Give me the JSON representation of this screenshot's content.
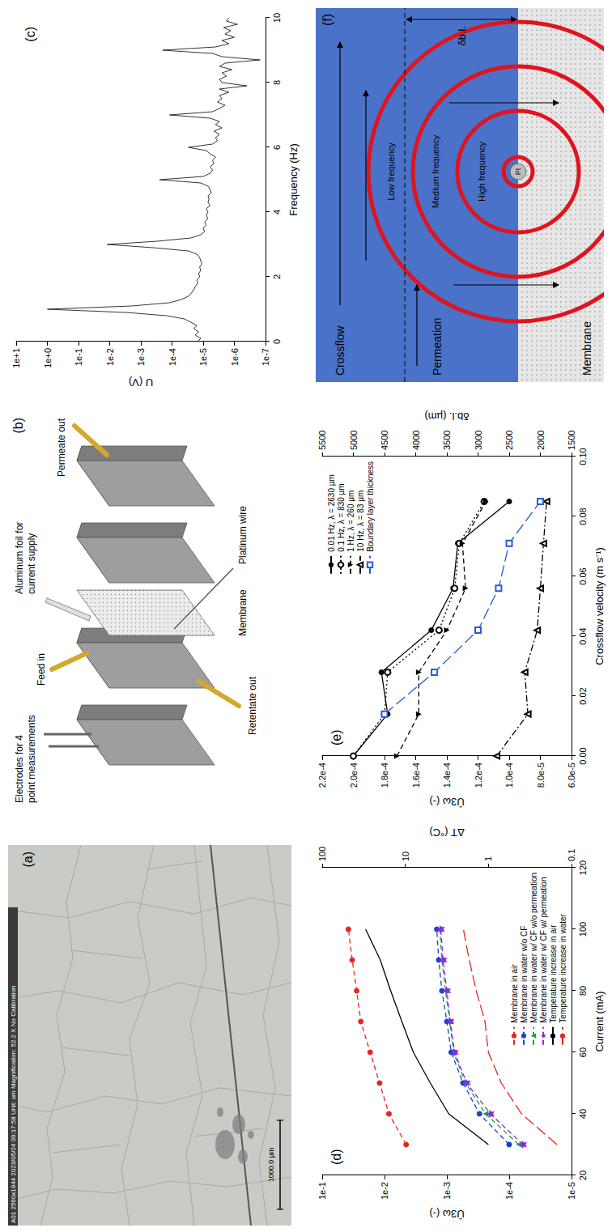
{
  "chart_data": [
    {
      "type": "line",
      "title": "(c)",
      "xlabel": "Frequency (Hz)",
      "ylabel": "U (V)",
      "x": [
        0,
        0.1,
        0.2,
        0.3,
        0.4,
        0.5,
        0.6,
        0.7,
        0.8,
        0.9,
        1,
        1.1,
        1.2,
        1.3,
        1.4,
        1.5,
        1.6,
        1.7,
        1.8,
        1.9,
        2,
        2.1,
        2.2,
        2.3,
        2.4,
        2.5,
        2.6,
        2.7,
        2.8,
        2.9,
        3,
        3.1,
        3.2,
        3.3,
        3.4,
        3.5,
        3.6,
        3.7,
        3.8,
        3.9,
        4,
        4.1,
        4.2,
        4.3,
        4.4,
        4.5,
        4.6,
        4.7,
        4.8,
        4.9,
        5,
        5.1,
        5.2,
        5.3,
        5.4,
        5.5,
        5.6,
        5.7,
        5.8,
        5.9,
        6,
        6.1,
        6.2,
        6.3,
        6.4,
        6.5,
        6.6,
        6.7,
        6.8,
        6.9,
        7,
        7.1,
        7.2,
        7.3,
        7.4,
        7.5,
        7.6,
        7.7,
        7.8,
        7.9,
        8,
        8.1,
        8.2,
        8.3,
        8.4,
        8.5,
        8.6,
        8.7,
        8.8,
        8.9,
        9,
        9.1,
        9.2,
        9.3,
        9.4,
        9.5,
        9.6,
        9.7,
        9.8,
        9.9,
        10
      ],
      "values": [
        1.5e-05,
        1.2e-05,
        1.8e-05,
        1.4e-05,
        2e-05,
        1.6e-05,
        2.5e-05,
        4e-05,
        0.00015,
        0.003,
        1.0,
        0.002,
        0.00012,
        5e-05,
        3e-05,
        2.4e-05,
        2e-05,
        1.8e-05,
        1.5e-05,
        1.6e-05,
        1.3e-05,
        1.4e-05,
        1.2e-05,
        1.3e-05,
        1.1e-05,
        1.2e-05,
        1.3e-05,
        1.6e-05,
        3e-05,
        0.0004,
        0.012,
        0.0003,
        2.5e-05,
        1.2e-05,
        9e-06,
        1e-05,
        8e-06,
        9e-06,
        7e-06,
        8e-06,
        7e-06,
        8e-06,
        6e-06,
        7e-06,
        6.5e-06,
        7e-06,
        5.5e-06,
        6e-06,
        7e-06,
        1.2e-05,
        0.00025,
        1e-05,
        6e-06,
        5e-06,
        6e-06,
        4.5e-06,
        5e-06,
        4e-06,
        6e-06,
        8e-06,
        3e-05,
        5e-06,
        3.5e-06,
        4e-06,
        3e-06,
        4.5e-06,
        2.5e-06,
        4e-06,
        3e-06,
        6e-06,
        0.00012,
        5e-06,
        3e-06,
        2e-06,
        3.5e-06,
        2.5e-06,
        3e-06,
        1.5e-06,
        3e-06,
        4e-07,
        2.5e-06,
        3e-06,
        1.8e-06,
        2.5e-06,
        1.2e-06,
        3e-06,
        2e-06,
        1.5e-07,
        2.5e-06,
        5e-06,
        0.0002,
        4e-06,
        1.5e-06,
        2.5e-06,
        1e-06,
        2e-06,
        1.3e-06,
        2.2e-06,
        8e-07,
        1.8e-06,
        1.5e-06
      ],
      "color": "#000000",
      "xlim": [
        0,
        10
      ],
      "xticks": [
        0,
        2,
        4,
        6,
        8,
        10
      ],
      "ylim": [
        1e-07,
        10
      ],
      "yticks": [
        {
          "value": 1e-07,
          "label": "1e-7"
        },
        {
          "value": 1e-06,
          "label": "1e-6"
        },
        {
          "value": 1e-05,
          "label": "1e-5"
        },
        {
          "value": 0.0001,
          "label": "1e-4"
        },
        {
          "value": 0.001,
          "label": "1e-3"
        },
        {
          "value": 0.01,
          "label": "1e-2"
        },
        {
          "value": 0.1,
          "label": "1e-1"
        },
        {
          "value": 1,
          "label": "1e+0"
        },
        {
          "value": 10,
          "label": "1e+1"
        }
      ],
      "log": "y",
      "grid": false
    },
    {
      "type": "line",
      "title": "(d)",
      "xlabel": "Current (mA)",
      "ylabel": "Û3ω (-)",
      "y2label": "ΔT (°C)",
      "x": [
        30,
        40,
        50,
        60,
        70,
        80,
        90,
        100
      ],
      "series": [
        {
          "name": "Membrane in air",
          "color": "#e8261f",
          "marker": "circle",
          "line_style": "dashed",
          "values": [
            0.0045,
            0.0085,
            0.012,
            0.017,
            0.024,
            0.028,
            0.033,
            0.038
          ]
        },
        {
          "name": "Membrane in water w/o CF",
          "color": "#1f3fd0",
          "marker": "circle",
          "line_style": "dashed",
          "values": [
            0.0001,
            0.0003,
            0.00055,
            0.00085,
            0.001,
            0.0012,
            0.00135,
            0.00145
          ]
        },
        {
          "name": "Membrane in water w/ CF w/o permeation",
          "color": "#1aa33a",
          "marker": "triangle",
          "line_style": "dashed",
          "values": [
            7e-05,
            0.00024,
            0.0005,
            0.00078,
            0.0009,
            0.00105,
            0.0012,
            0.0013
          ]
        },
        {
          "name": "Membrane in water w/ CF w/ permeation",
          "color": "#8a2be2",
          "marker": "star",
          "line_style": "dashed",
          "values": [
            6e-05,
            0.0002,
            0.00048,
            0.00075,
            0.00088,
            0.001,
            0.00115,
            0.00125
          ]
        },
        {
          "name": "Temperature increase in air",
          "color": "#000000",
          "line_style": "solid",
          "axis": "y2",
          "values": [
            1.0,
            3.0,
            5.0,
            8.0,
            11,
            15,
            20,
            30
          ]
        },
        {
          "name": "Temperature increase in water",
          "color": "#e8261f",
          "line_style": "longdash",
          "axis": "y2",
          "values": [
            0.15,
            0.4,
            0.7,
            1.0,
            1.1,
            1.4,
            1.7,
            2.0
          ]
        }
      ],
      "xlim": [
        20,
        120
      ],
      "xticks": [
        20,
        40,
        60,
        80,
        100,
        120
      ],
      "ylim": [
        1e-05,
        0.1
      ],
      "yticks": [
        {
          "value": 1e-05,
          "label": "1e-5"
        },
        {
          "value": 0.0001,
          "label": "1e-4"
        },
        {
          "value": 0.001,
          "label": "1e-3"
        },
        {
          "value": 0.01,
          "label": "1e-2"
        },
        {
          "value": 0.1,
          "label": "1e-1"
        }
      ],
      "y2lim": [
        0.1,
        100
      ],
      "y2ticks": [
        0.1,
        1,
        10,
        100
      ],
      "log": "y",
      "grid": false,
      "legend": "bottom right"
    },
    {
      "type": "line",
      "title": "(e)",
      "xlabel": "Crossflow velocity (m s⁻¹)",
      "ylabel": "Û3ω (-)",
      "y2label": "δb.l. (µm)",
      "x": [
        0,
        0.014,
        0.028,
        0.042,
        0.056,
        0.071,
        0.085
      ],
      "series": [
        {
          "name": "0.01 Hz, λ = 2630 µm",
          "color": "#000000",
          "marker": "circle",
          "line_style": "solid",
          "values": [
            0.0002,
            0.000178,
            0.000182,
            0.00015,
            0.000136,
            0.000133,
            0.0001
          ]
        },
        {
          "name": "0.1 Hz, λ = 830 µm",
          "color": "#000000",
          "marker": "circle_open",
          "line_style": "dotted",
          "values": [
            0.0002,
            0.00018,
            0.000178,
            0.000145,
            0.000135,
            0.000132,
            0.000116
          ]
        },
        {
          "name": "1 Hz, λ = 260 µm",
          "color": "#000000",
          "marker": "triangle_down",
          "line_style": "dashed",
          "values": [
            0.000172,
            0.000158,
            0.000158,
            0.00014,
            0.000128,
            0.00013,
            0.000115
          ]
        },
        {
          "name": "10 Hz, λ = 83 µm",
          "color": "#000000",
          "marker": "triangle_open",
          "line_style": "dashdot",
          "values": [
            0.000108,
            8.8e-05,
            9e-05,
            8.2e-05,
            8e-05,
            7.8e-05,
            7.6e-05
          ]
        },
        {
          "name": "Boundary layer thickness",
          "color": "#2a5cd6",
          "marker": "square_open",
          "line_style": "longdash",
          "axis": "y2",
          "values": [
            null,
            4500,
            3700,
            3000,
            2670,
            2500,
            2000
          ]
        }
      ],
      "xlim": [
        0,
        0.1
      ],
      "xticks": [
        {
          "value": 0,
          "label": "0.00"
        },
        0.02,
        0.04,
        0.06,
        0.08,
        {
          "value": 0.1,
          "label": "0.10"
        }
      ],
      "ylim": [
        6e-05,
        0.00022
      ],
      "yticks": [
        {
          "value": 6e-05,
          "label": "6.0e-5"
        },
        {
          "value": 8e-05,
          "label": "8.0e-5"
        },
        {
          "value": 0.0001,
          "label": "1.0e-4"
        },
        {
          "value": 0.00012,
          "label": "1.2e-4"
        },
        {
          "value": 0.00014,
          "label": "1.4e-4"
        },
        {
          "value": 0.00016,
          "label": "1.6e-4"
        },
        {
          "value": 0.00018,
          "label": "1.8e-4"
        },
        {
          "value": 0.0002,
          "label": "2.0e-4"
        },
        {
          "value": 0.00022,
          "label": "2.2e-4"
        }
      ],
      "y2lim": [
        1500,
        5500
      ],
      "y2ticks": [
        1500,
        2000,
        2500,
        3000,
        3500,
        4000,
        4500,
        5000,
        5500
      ],
      "grid": false,
      "legend": "top right"
    }
  ],
  "photo": {
    "label": "(a)",
    "header": "A01 2560x1944 2023/05/24 09:17:58 Unit: um Magnification: 52.2 X No Calibration",
    "scale_bar": "1000.0 µm"
  },
  "schematic": {
    "label": "(b)",
    "electrodes": "Electrodes for 4 point measurements",
    "feed_in": "Feed in",
    "membrane": "Membrane",
    "aluminum_foil": "Aluminum foil for current supply",
    "permeate_out": "Permeate out",
    "retentate_out": "Retentate out",
    "platinum_wire": "Platinum wire"
  },
  "diagram": {
    "label": "(f)",
    "crossflow": "Crossflow",
    "permeation": "Permeation",
    "membrane": "Membrane",
    "electrode": "Pt",
    "frequencies": [
      "High frequency",
      "Medium frequency",
      "Low frequency"
    ],
    "boundary_layer": "δb.l."
  }
}
